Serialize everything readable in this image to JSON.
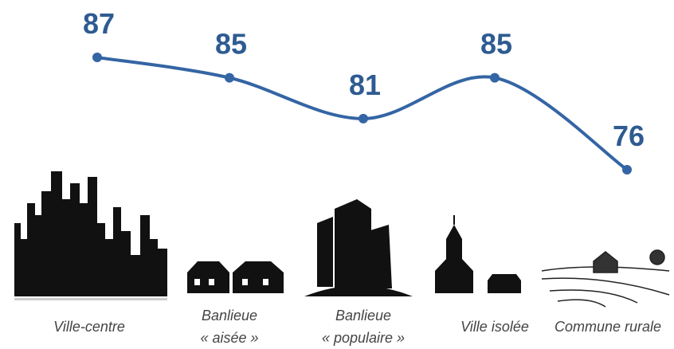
{
  "chart_data": {
    "type": "line",
    "categories": [
      "Ville-centre",
      "Banlieue\n« aisée »",
      "Banlieue\n« populaire »",
      "Ville isolée",
      "Commune rurale"
    ],
    "values": [
      87,
      85,
      81,
      85,
      76
    ],
    "color": "#3465a4",
    "label_color": "#2e5b91"
  }
}
